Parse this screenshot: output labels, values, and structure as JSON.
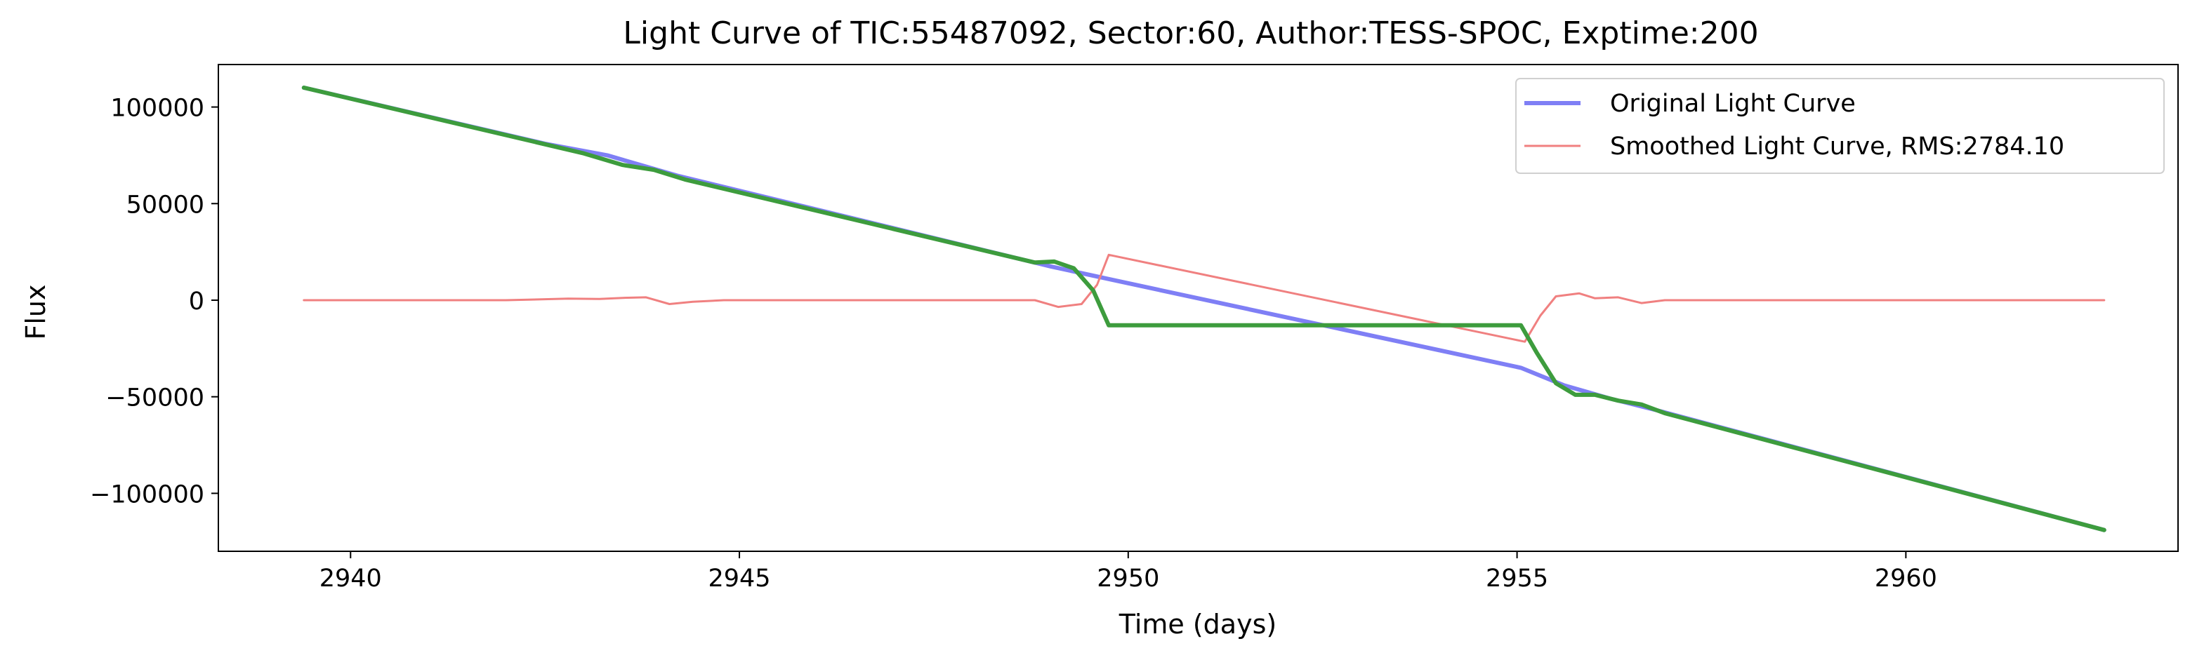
{
  "chart_data": {
    "type": "line",
    "title": "Light Curve of TIC:55487092, Sector:60, Author:TESS-SPOC, Exptime:200",
    "xlabel": "Time (days)",
    "ylabel": "Flux",
    "xlim": [
      2938.3,
      2963.5
    ],
    "ylim": [
      -130000,
      122000
    ],
    "xticks": [
      2940,
      2945,
      2950,
      2955,
      2960
    ],
    "yticks": [
      100000,
      50000,
      0,
      -50000,
      -100000
    ],
    "xtick_labels": [
      "2940",
      "2945",
      "2950",
      "2955",
      "2960"
    ],
    "ytick_labels": [
      "100000",
      "50000",
      "0",
      "−50000",
      "−100000"
    ],
    "grid": false,
    "legend_position": "top-right",
    "series": [
      {
        "name": "Original Light Curve",
        "color": "#7f7ff5",
        "x": [
          2939.4,
          2942.5,
          2943.3,
          2944.2,
          2949.0,
          2949.8,
          2955.05,
          2955.6,
          2956.2,
          2956.8,
          2962.55
        ],
        "y": [
          110000,
          81000,
          75000,
          64500,
          17500,
          10500,
          -35000,
          -44000,
          -51000,
          -57000,
          -119000
        ]
      },
      {
        "name": "Smoothed Light Curve, RMS:2784.10",
        "color": "#f08080",
        "x": [
          2939.4,
          2942.0,
          2942.8,
          2943.2,
          2943.5,
          2943.8,
          2944.1,
          2944.4,
          2944.8,
          2948.8,
          2949.1,
          2949.4,
          2949.6,
          2949.75,
          2955.1,
          2955.3,
          2955.5,
          2955.8,
          2956.0,
          2956.3,
          2956.6,
          2956.9,
          2957.2,
          2962.55
        ],
        "y": [
          0,
          0,
          800,
          600,
          1200,
          1500,
          -2000,
          -800,
          0,
          0,
          -3500,
          -2000,
          8000,
          23500,
          -21500,
          -8000,
          2000,
          3500,
          1000,
          1500,
          -1500,
          0,
          0,
          0
        ]
      },
      {
        "name": "",
        "color": "#3d9c3d",
        "x": [
          2939.4,
          2943.0,
          2943.5,
          2943.9,
          2944.3,
          2948.8,
          2949.05,
          2949.3,
          2949.55,
          2949.75,
          2955.05,
          2955.25,
          2955.5,
          2955.75,
          2956.0,
          2956.3,
          2956.6,
          2956.9,
          2962.55
        ],
        "y": [
          110000,
          76000,
          70000,
          67500,
          62500,
          19500,
          20000,
          16500,
          5000,
          -13000,
          -13000,
          -27000,
          -43000,
          -49000,
          -49000,
          -52000,
          -54000,
          -58500,
          -119000
        ]
      }
    ]
  }
}
